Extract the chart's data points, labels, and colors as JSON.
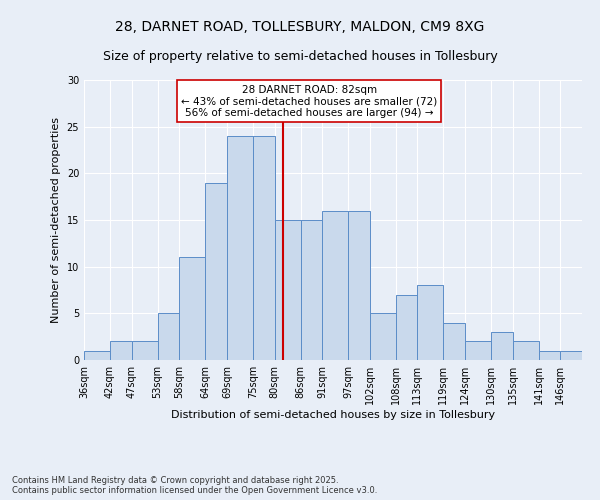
{
  "title_line1": "28, DARNET ROAD, TOLLESBURY, MALDON, CM9 8XG",
  "title_line2": "Size of property relative to semi-detached houses in Tollesbury",
  "xlabel": "Distribution of semi-detached houses by size in Tollesbury",
  "ylabel": "Number of semi-detached properties",
  "bins": [
    36,
    42,
    47,
    53,
    58,
    64,
    69,
    75,
    80,
    86,
    91,
    97,
    102,
    108,
    113,
    119,
    124,
    130,
    135,
    141,
    146
  ],
  "counts": [
    1,
    2,
    2,
    5,
    11,
    19,
    24,
    24,
    15,
    15,
    16,
    16,
    5,
    7,
    8,
    4,
    2,
    3,
    2,
    1,
    1
  ],
  "bar_color": "#c9d9ec",
  "bar_edge_color": "#5b8dc8",
  "property_size": 82,
  "vline_color": "#cc0000",
  "annotation_text": "28 DARNET ROAD: 82sqm\n← 43% of semi-detached houses are smaller (72)\n56% of semi-detached houses are larger (94) →",
  "annotation_box_facecolor": "#ffffff",
  "annotation_box_edgecolor": "#cc0000",
  "ylim": [
    0,
    30
  ],
  "yticks": [
    0,
    5,
    10,
    15,
    20,
    25,
    30
  ],
  "background_color": "#e8eef7",
  "footer_text": "Contains HM Land Registry data © Crown copyright and database right 2025.\nContains public sector information licensed under the Open Government Licence v3.0.",
  "title_fontsize": 10,
  "subtitle_fontsize": 9,
  "axis_label_fontsize": 8,
  "tick_fontsize": 7,
  "annotation_fontsize": 7.5,
  "footer_fontsize": 6
}
